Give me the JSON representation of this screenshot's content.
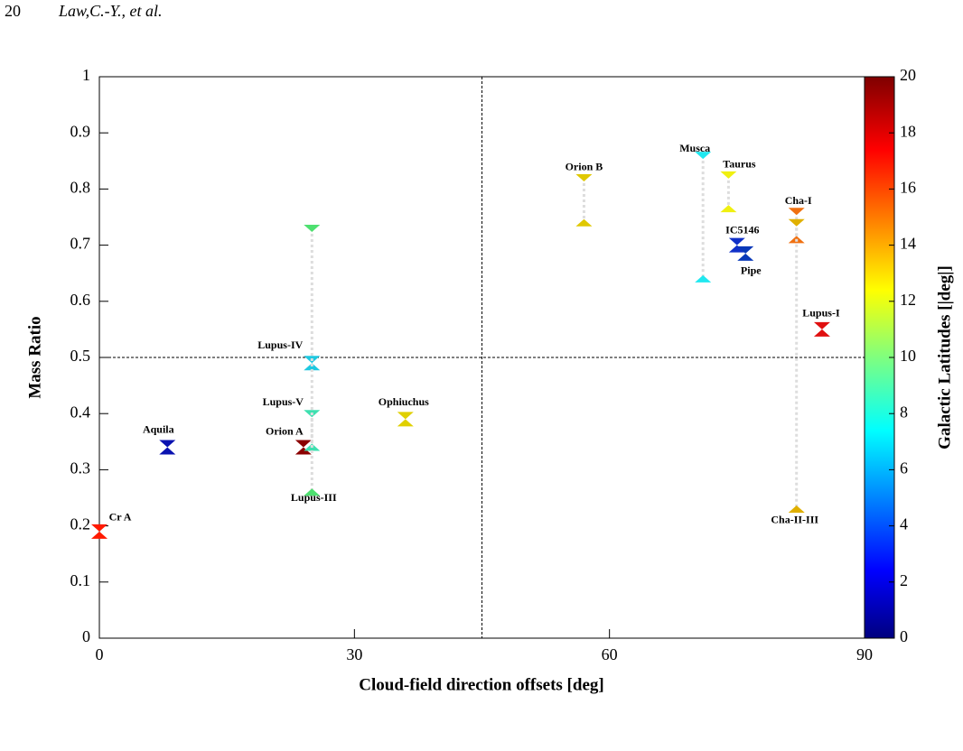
{
  "header": {
    "page": "20",
    "authors": "Law,C.-Y., et al."
  },
  "chart_data": {
    "type": "scatter",
    "xlabel": "Cloud-field direction offsets [deg]",
    "ylabel": "Mass Ratio",
    "colorbar_label": "Galactic Latitudes [|deg|]",
    "xlim": [
      0,
      90
    ],
    "xticks": [
      0,
      30,
      60,
      90
    ],
    "ylim": [
      0,
      1
    ],
    "yticks": [
      0,
      0.1,
      0.2,
      0.3,
      0.4,
      0.5,
      0.6,
      0.7,
      0.8,
      0.9,
      1
    ],
    "clim": [
      0,
      20
    ],
    "cticks": [
      0,
      2,
      4,
      6,
      8,
      10,
      12,
      14,
      16,
      18,
      20
    ],
    "vlines": [
      45
    ],
    "hlines": [
      0.5
    ],
    "series": [
      {
        "name": "Cr A",
        "color": "#ff1a00",
        "x": 0,
        "values": [
          0.19
        ]
      },
      {
        "name": "Aquila",
        "color": "#0a12b0",
        "x": 8,
        "values": [
          0.34
        ]
      },
      {
        "name": "Orion A",
        "color": "#8b0000",
        "x": 24,
        "values": [
          0.34
        ]
      },
      {
        "name": "Lupus-IV",
        "color": "#1ec8e0",
        "x": 25,
        "values": [
          0.49
        ]
      },
      {
        "name": "Lupus-V",
        "color": "#3ee0b0",
        "x": 25,
        "values": [
          0.4,
          0.34
        ]
      },
      {
        "name": "Lupus-III",
        "color": "#4ee070",
        "x": 25,
        "values": [
          0.73,
          0.26
        ]
      },
      {
        "name": "Ophiuchus",
        "color": "#e0d000",
        "x": 36,
        "values": [
          0.39
        ]
      },
      {
        "name": "Orion B",
        "color": "#e0c800",
        "x": 57,
        "values": [
          0.82,
          0.74
        ]
      },
      {
        "name": "Musca",
        "color": "#20e8f0",
        "x": 71,
        "values": [
          0.86,
          0.64
        ]
      },
      {
        "name": "Taurus",
        "color": "#f0f010",
        "x": 74,
        "values": [
          0.825,
          0.765
        ]
      },
      {
        "name": "IC5146",
        "color": "#1030c8",
        "x": 75,
        "values": [
          0.7
        ]
      },
      {
        "name": "Pipe",
        "color": "#0838b8",
        "x": 76,
        "values": [
          0.685
        ]
      },
      {
        "name": "Cha-I",
        "color": "#f07010",
        "x": 82,
        "values": [
          0.76,
          0.71
        ]
      },
      {
        "name": "Cha-II-III",
        "color": "#e0b000",
        "x": 82,
        "values": [
          0.74,
          0.23
        ]
      },
      {
        "name": "Lupus-I",
        "color": "#e01010",
        "x": 85,
        "values": [
          0.55
        ]
      }
    ]
  }
}
